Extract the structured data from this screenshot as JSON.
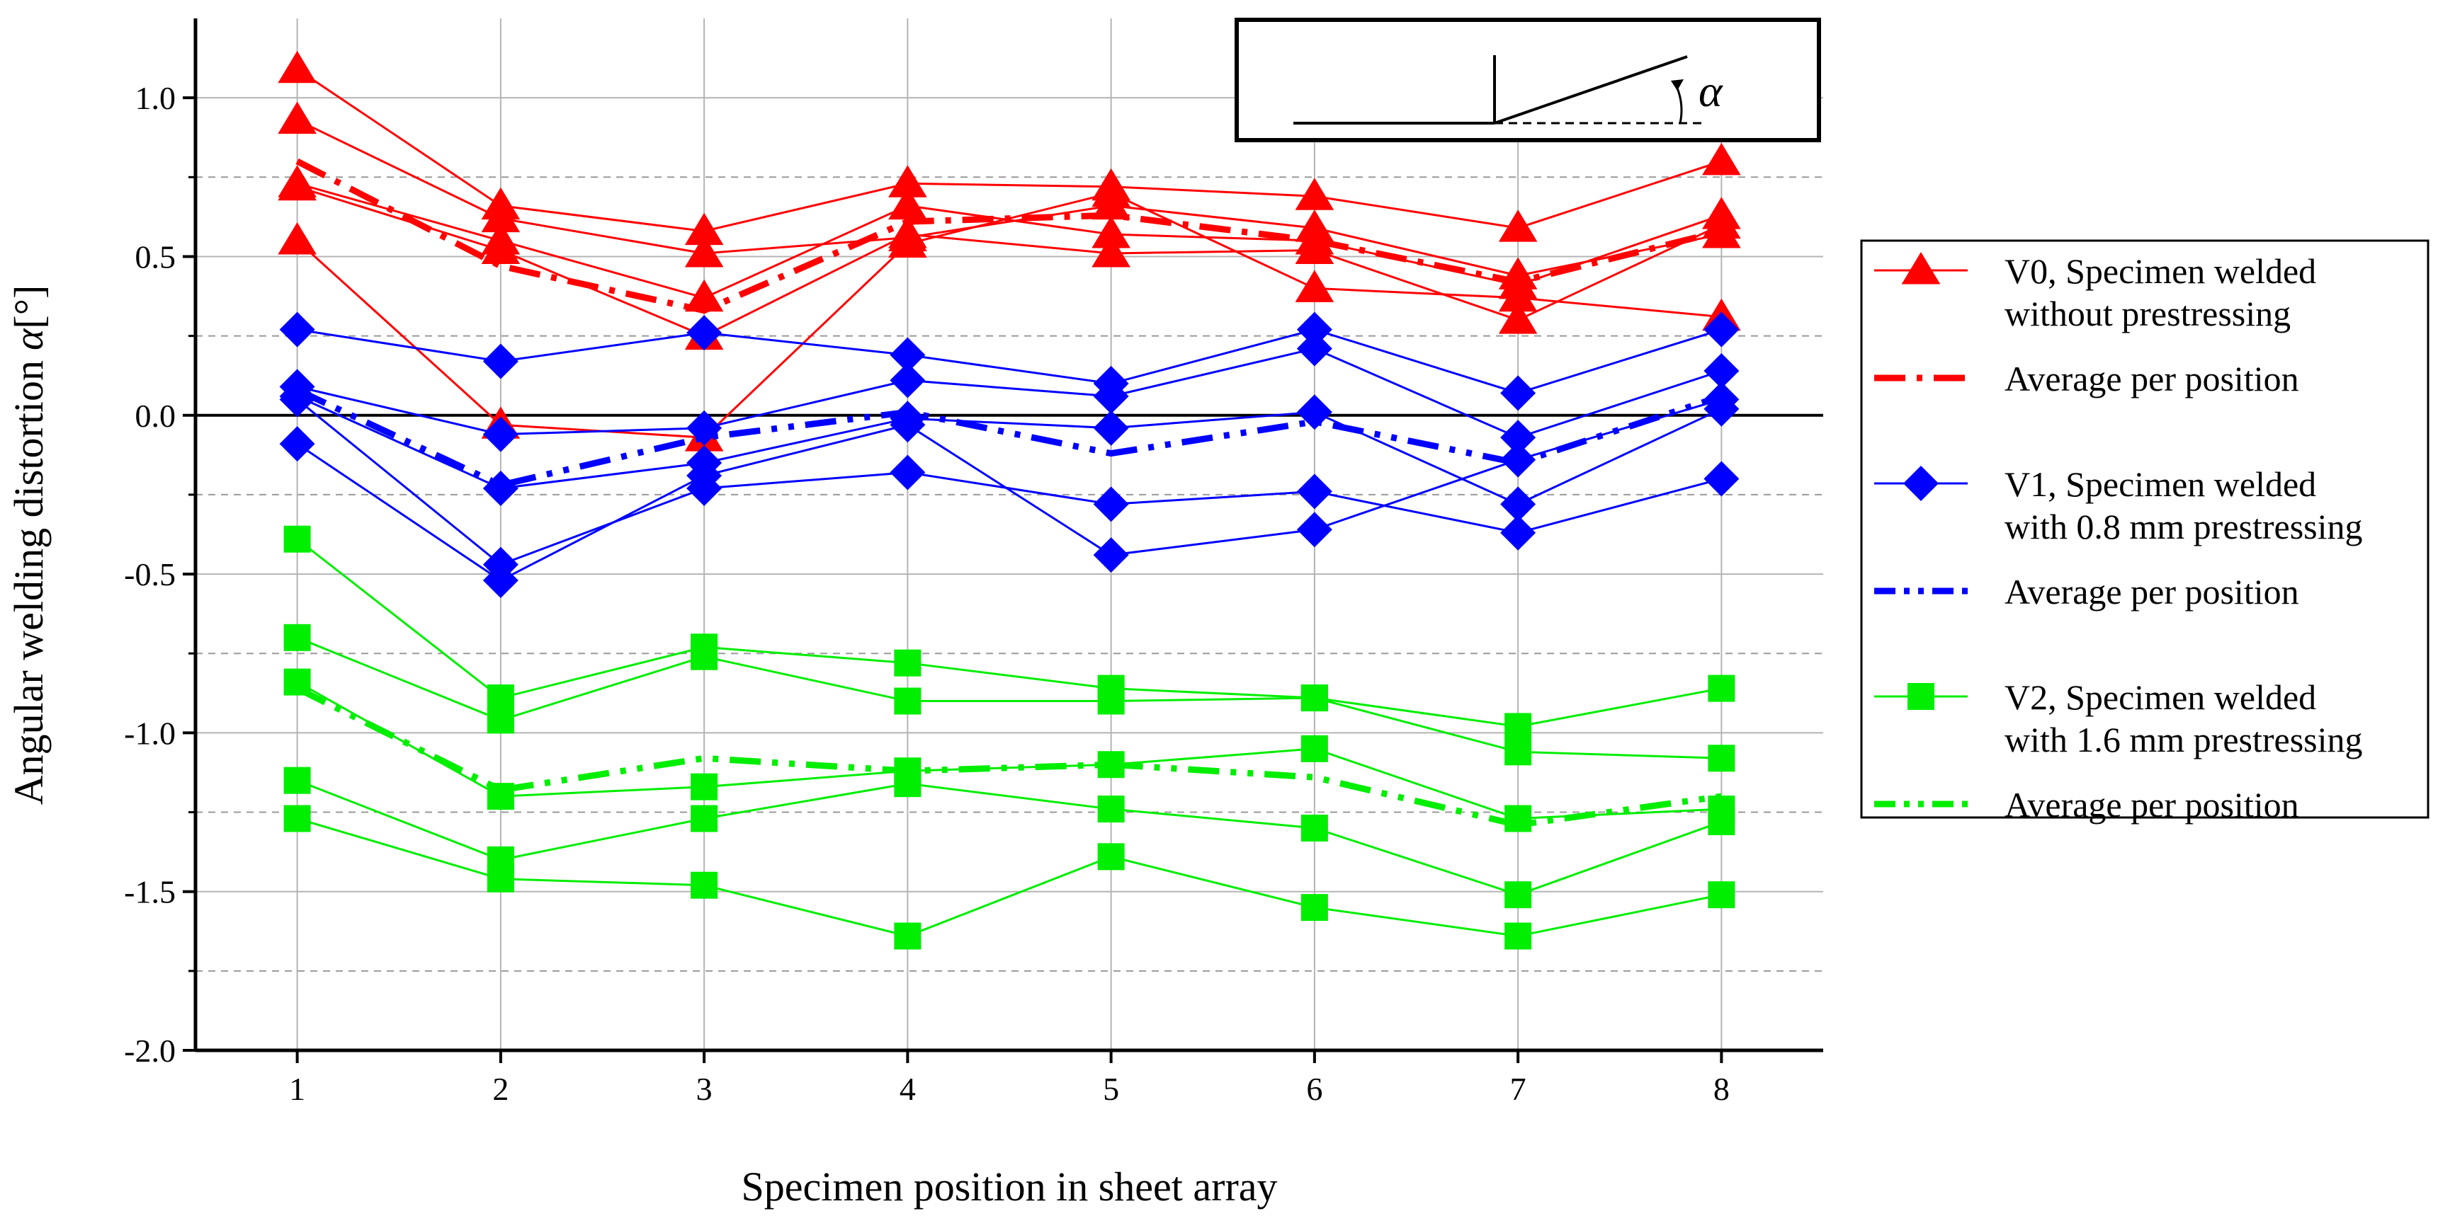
{
  "chart_data": {
    "type": "line",
    "xlabel": "Specimen position in sheet array",
    "ylabel": "Angular welding distortion",
    "ylabel_symbol": "α",
    "ylabel_unit": "[°]",
    "x": [
      1,
      2,
      3,
      4,
      5,
      6,
      7,
      8
    ],
    "xlim": [
      0.5,
      8.5
    ],
    "ylim": [
      -2.0,
      1.25
    ],
    "xticks": [
      1,
      2,
      3,
      4,
      5,
      6,
      7,
      8
    ],
    "yticks": [
      -2.0,
      -1.5,
      -1.0,
      -0.5,
      0.0,
      0.5,
      1.0
    ],
    "ytick_labels": [
      "-2.0",
      "-1.5",
      "-1.0",
      "-0.5",
      "0.0",
      "0.5",
      "1.0"
    ],
    "minor_yticks": [
      -1.75,
      -1.25,
      -0.75,
      -0.25,
      0.25,
      0.75
    ],
    "zero_line": 0.0,
    "inset_symbol": "α",
    "groups": [
      {
        "name": "V0",
        "legend_line1": "V0, Specimen welded",
        "legend_line2": "without prestressing",
        "average_label": "Average per position",
        "color": "#ff0000",
        "marker": "triangle",
        "series": [
          [
            1.09,
            0.66,
            0.58,
            0.73,
            0.72,
            0.69,
            0.59,
            0.8
          ],
          [
            0.93,
            0.62,
            0.51,
            0.56,
            0.66,
            0.59,
            0.44,
            0.57
          ],
          [
            0.73,
            0.55,
            0.37,
            0.66,
            0.57,
            0.55,
            0.41,
            0.63
          ],
          [
            0.72,
            0.52,
            0.25,
            0.57,
            0.51,
            0.52,
            0.3,
            0.6
          ],
          [
            0.55,
            -0.03,
            -0.07,
            0.54,
            0.7,
            0.4,
            0.37,
            0.31
          ]
        ],
        "average": [
          0.8,
          0.47,
          0.33,
          0.61,
          0.63,
          0.55,
          0.42,
          0.58
        ]
      },
      {
        "name": "V1",
        "legend_line1": "V1, Specimen welded",
        "legend_line2": "with 0.8 mm prestressing",
        "average_label": "Average per position",
        "color": "#0000ff",
        "marker": "diamond",
        "series": [
          [
            0.27,
            0.17,
            0.26,
            0.19,
            0.1,
            0.27,
            0.07,
            0.27
          ],
          [
            0.09,
            -0.06,
            -0.04,
            0.11,
            0.06,
            0.21,
            -0.07,
            0.14
          ],
          [
            0.06,
            -0.23,
            -0.15,
            -0.01,
            -0.04,
            0.01,
            -0.28,
            0.02
          ],
          [
            0.05,
            -0.47,
            -0.23,
            -0.18,
            -0.28,
            -0.24,
            -0.37,
            -0.2
          ],
          [
            -0.09,
            -0.52,
            -0.19,
            -0.03,
            -0.44,
            -0.36,
            -0.14,
            0.05
          ]
        ],
        "average": [
          0.08,
          -0.22,
          -0.07,
          0.01,
          -0.12,
          -0.02,
          -0.15,
          0.06
        ]
      },
      {
        "name": "V2",
        "legend_line1": "V2, Specimen welded",
        "legend_line2": "with 1.6 mm prestressing",
        "average_label": "Average per position",
        "color": "#00ee00",
        "marker": "square",
        "series": [
          [
            -0.39,
            -0.89,
            -0.73,
            -0.78,
            -0.86,
            -0.89,
            -0.98,
            -0.86
          ],
          [
            -0.7,
            -0.96,
            -0.76,
            -0.9,
            -0.9,
            -0.89,
            -1.06,
            -1.08
          ],
          [
            -0.84,
            -1.2,
            -1.17,
            -1.12,
            -1.1,
            -1.05,
            -1.27,
            -1.24
          ],
          [
            -1.15,
            -1.4,
            -1.27,
            -1.16,
            -1.24,
            -1.3,
            -1.51,
            -1.28
          ],
          [
            -1.27,
            -1.46,
            -1.48,
            -1.64,
            -1.39,
            -1.55,
            -1.64,
            -1.51
          ]
        ],
        "average": [
          -0.86,
          -1.18,
          -1.08,
          -1.12,
          -1.1,
          -1.14,
          -1.29,
          -1.2
        ]
      }
    ]
  }
}
